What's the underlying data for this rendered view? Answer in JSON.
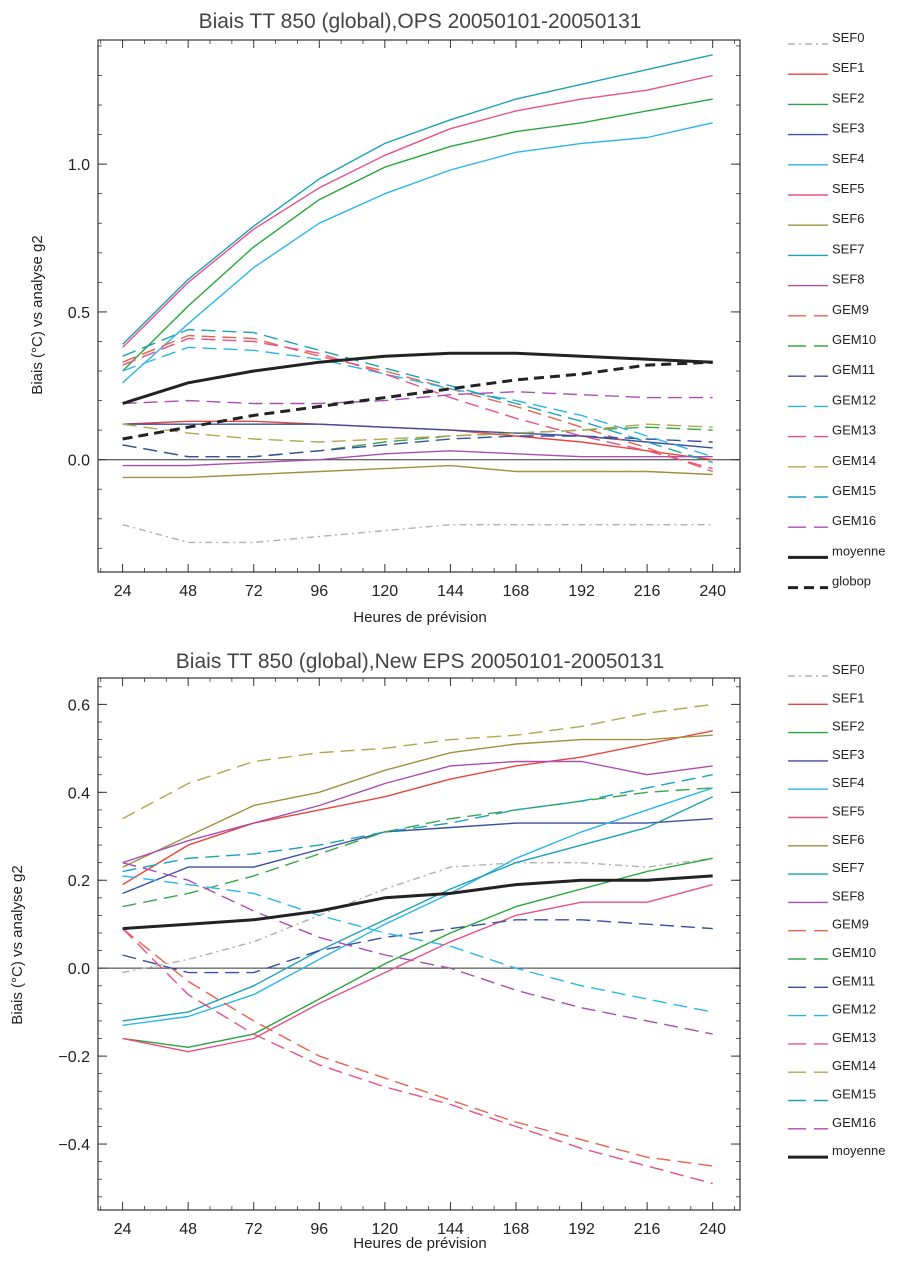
{
  "chart_data": [
    {
      "type": "line",
      "title": "Biais TT 850 (global),OPS 20050101-20050131",
      "xlabel": "Heures de prévision",
      "ylabel": "Biais (°C) vs analyse g2",
      "x": [
        24,
        48,
        72,
        96,
        120,
        144,
        168,
        192,
        216,
        240
      ],
      "xlim": [
        15,
        250
      ],
      "ylim": [
        -0.38,
        1.42
      ],
      "yticks": [
        0.0,
        0.5,
        1.0
      ],
      "yticklabels": [
        "0.0",
        "0.5",
        "1.0"
      ],
      "zero_line": true,
      "grid": false,
      "legend": "right",
      "series": [
        {
          "name": "SEF0",
          "color": "#b0b0b0",
          "dash": "dashdot",
          "values": [
            -0.22,
            -0.28,
            -0.28,
            -0.26,
            -0.24,
            -0.22,
            -0.22,
            -0.22,
            -0.22,
            -0.22
          ]
        },
        {
          "name": "SEF1",
          "color": "#e8453c",
          "dash": "solid",
          "values": [
            0.12,
            0.13,
            0.13,
            0.12,
            0.11,
            0.1,
            0.08,
            0.06,
            0.03,
            0.0
          ]
        },
        {
          "name": "SEF2",
          "color": "#2aa63a",
          "dash": "solid",
          "values": [
            0.3,
            0.52,
            0.72,
            0.88,
            0.99,
            1.06,
            1.11,
            1.14,
            1.18,
            1.22
          ]
        },
        {
          "name": "SEF3",
          "color": "#3a4fa0",
          "dash": "solid",
          "values": [
            0.12,
            0.12,
            0.12,
            0.12,
            0.11,
            0.1,
            0.09,
            0.08,
            0.06,
            0.04
          ]
        },
        {
          "name": "SEF4",
          "color": "#2bb6e8",
          "dash": "solid",
          "values": [
            0.26,
            0.46,
            0.65,
            0.8,
            0.9,
            0.98,
            1.04,
            1.07,
            1.09,
            1.14
          ]
        },
        {
          "name": "SEF5",
          "color": "#e8508a",
          "dash": "solid",
          "values": [
            0.38,
            0.6,
            0.78,
            0.92,
            1.03,
            1.12,
            1.18,
            1.22,
            1.25,
            1.3
          ]
        },
        {
          "name": "SEF6",
          "color": "#a09040",
          "dash": "solid",
          "values": [
            -0.06,
            -0.06,
            -0.05,
            -0.04,
            -0.03,
            -0.02,
            -0.04,
            -0.04,
            -0.04,
            -0.05
          ]
        },
        {
          "name": "SEF7",
          "color": "#1ba2b8",
          "dash": "solid",
          "values": [
            0.39,
            0.61,
            0.79,
            0.95,
            1.07,
            1.15,
            1.22,
            1.27,
            1.32,
            1.37
          ]
        },
        {
          "name": "SEF8",
          "color": "#a84fb0",
          "dash": "solid",
          "values": [
            -0.02,
            -0.02,
            -0.01,
            0.0,
            0.02,
            0.03,
            0.02,
            0.01,
            0.01,
            0.01
          ]
        },
        {
          "name": "GEM9",
          "color": "#e8634a",
          "dash": "dash",
          "values": [
            0.33,
            0.42,
            0.41,
            0.35,
            0.3,
            0.24,
            0.18,
            0.11,
            0.04,
            -0.04
          ]
        },
        {
          "name": "GEM10",
          "color": "#3aa64a",
          "dash": "dash",
          "values": [
            0.05,
            0.01,
            0.01,
            0.03,
            0.06,
            0.08,
            0.09,
            0.1,
            0.11,
            0.1
          ]
        },
        {
          "name": "GEM11",
          "color": "#3a4fa0",
          "dash": "dash",
          "values": [
            0.05,
            0.01,
            0.01,
            0.03,
            0.05,
            0.07,
            0.08,
            0.08,
            0.07,
            0.06
          ]
        },
        {
          "name": "GEM12",
          "color": "#2bb6e8",
          "dash": "dash",
          "values": [
            0.3,
            0.38,
            0.37,
            0.34,
            0.29,
            0.24,
            0.2,
            0.15,
            0.08,
            0.01
          ]
        },
        {
          "name": "GEM13",
          "color": "#e8508a",
          "dash": "dash",
          "values": [
            0.32,
            0.41,
            0.4,
            0.36,
            0.29,
            0.21,
            0.14,
            0.08,
            0.03,
            -0.03
          ]
        },
        {
          "name": "GEM14",
          "color": "#b0a850",
          "dash": "dash",
          "values": [
            0.12,
            0.09,
            0.07,
            0.06,
            0.07,
            0.08,
            0.09,
            0.1,
            0.12,
            0.11
          ]
        },
        {
          "name": "GEM15",
          "color": "#1ba2b8",
          "dash": "dash",
          "values": [
            0.35,
            0.44,
            0.43,
            0.37,
            0.31,
            0.25,
            0.19,
            0.13,
            0.06,
            -0.01
          ]
        },
        {
          "name": "GEM16",
          "color": "#a84fb0",
          "dash": "dash",
          "values": [
            0.19,
            0.2,
            0.19,
            0.19,
            0.2,
            0.22,
            0.23,
            0.22,
            0.21,
            0.21
          ]
        },
        {
          "name": "moyenne",
          "color": "#222222",
          "dash": "solid",
          "width": 3,
          "values": [
            0.19,
            0.26,
            0.3,
            0.33,
            0.35,
            0.36,
            0.36,
            0.35,
            0.34,
            0.33
          ]
        },
        {
          "name": "globop",
          "color": "#222222",
          "dash": "boldDash",
          "width": 3,
          "values": [
            0.07,
            0.11,
            0.15,
            0.18,
            0.21,
            0.24,
            0.27,
            0.29,
            0.32,
            0.33
          ]
        }
      ]
    },
    {
      "type": "line",
      "title": "Biais TT 850 (global),New EPS 20050101-20050131",
      "xlabel": "Heures de prévision",
      "ylabel": "Biais (°C) vs analyse g2",
      "x": [
        24,
        48,
        72,
        96,
        120,
        144,
        168,
        192,
        216,
        240
      ],
      "xlim": [
        15,
        250
      ],
      "ylim": [
        -0.55,
        0.66
      ],
      "yticks": [
        -0.4,
        -0.2,
        0.0,
        0.2,
        0.4,
        0.6
      ],
      "yticklabels": [
        "−0.4",
        "−0.2",
        "0.0",
        "0.2",
        "0.4",
        "0.6"
      ],
      "zero_line": true,
      "grid": false,
      "legend": "right",
      "series": [
        {
          "name": "SEF0",
          "color": "#b0b0b0",
          "dash": "dashdot",
          "values": [
            -0.01,
            0.02,
            0.06,
            0.12,
            0.18,
            0.23,
            0.24,
            0.24,
            0.23,
            0.25
          ]
        },
        {
          "name": "SEF1",
          "color": "#e8453c",
          "dash": "solid",
          "values": [
            0.19,
            0.28,
            0.33,
            0.36,
            0.39,
            0.43,
            0.46,
            0.48,
            0.51,
            0.54
          ]
        },
        {
          "name": "SEF2",
          "color": "#2aa63a",
          "dash": "solid",
          "values": [
            -0.16,
            -0.18,
            -0.15,
            -0.07,
            0.01,
            0.08,
            0.14,
            0.18,
            0.22,
            0.25
          ]
        },
        {
          "name": "SEF3",
          "color": "#3a4fa0",
          "dash": "solid",
          "values": [
            0.17,
            0.23,
            0.23,
            0.27,
            0.31,
            0.32,
            0.33,
            0.33,
            0.33,
            0.34
          ]
        },
        {
          "name": "SEF4",
          "color": "#2bb6e8",
          "dash": "solid",
          "values": [
            -0.13,
            -0.11,
            -0.06,
            0.02,
            0.1,
            0.17,
            0.25,
            0.31,
            0.36,
            0.41
          ]
        },
        {
          "name": "SEF5",
          "color": "#e8508a",
          "dash": "solid",
          "values": [
            -0.16,
            -0.19,
            -0.16,
            -0.08,
            -0.01,
            0.06,
            0.12,
            0.15,
            0.15,
            0.19
          ]
        },
        {
          "name": "SEF6",
          "color": "#a09040",
          "dash": "solid",
          "values": [
            0.23,
            0.3,
            0.37,
            0.4,
            0.45,
            0.49,
            0.51,
            0.52,
            0.52,
            0.53
          ]
        },
        {
          "name": "SEF7",
          "color": "#1ba2b8",
          "dash": "solid",
          "values": [
            -0.12,
            -0.1,
            -0.04,
            0.04,
            0.11,
            0.18,
            0.24,
            0.28,
            0.32,
            0.39
          ]
        },
        {
          "name": "SEF8",
          "color": "#a84fb0",
          "dash": "solid",
          "values": [
            0.24,
            0.29,
            0.33,
            0.37,
            0.42,
            0.46,
            0.47,
            0.47,
            0.44,
            0.46
          ]
        },
        {
          "name": "GEM9",
          "color": "#e8634a",
          "dash": "dash",
          "values": [
            0.09,
            -0.03,
            -0.12,
            -0.2,
            -0.25,
            -0.3,
            -0.35,
            -0.39,
            -0.43,
            -0.45
          ]
        },
        {
          "name": "GEM10",
          "color": "#3aa64a",
          "dash": "dash",
          "values": [
            0.14,
            0.17,
            0.21,
            0.26,
            0.31,
            0.34,
            0.36,
            0.38,
            0.4,
            0.41
          ]
        },
        {
          "name": "GEM11",
          "color": "#3a4fa0",
          "dash": "dash",
          "values": [
            0.03,
            -0.01,
            -0.01,
            0.04,
            0.07,
            0.09,
            0.11,
            0.11,
            0.1,
            0.09
          ]
        },
        {
          "name": "GEM12",
          "color": "#2bb6e8",
          "dash": "dash",
          "values": [
            0.21,
            0.19,
            0.17,
            0.12,
            0.08,
            0.05,
            0.0,
            -0.04,
            -0.07,
            -0.1
          ]
        },
        {
          "name": "GEM13",
          "color": "#e8508a",
          "dash": "dash",
          "values": [
            0.09,
            -0.06,
            -0.15,
            -0.22,
            -0.27,
            -0.31,
            -0.36,
            -0.41,
            -0.45,
            -0.49
          ]
        },
        {
          "name": "GEM14",
          "color": "#b0a850",
          "dash": "dash",
          "values": [
            0.34,
            0.42,
            0.47,
            0.49,
            0.5,
            0.52,
            0.53,
            0.55,
            0.58,
            0.6
          ]
        },
        {
          "name": "GEM15",
          "color": "#1ba2b8",
          "dash": "dash",
          "values": [
            0.22,
            0.25,
            0.26,
            0.28,
            0.31,
            0.33,
            0.36,
            0.38,
            0.41,
            0.44
          ]
        },
        {
          "name": "GEM16",
          "color": "#a84fb0",
          "dash": "dash",
          "values": [
            0.24,
            0.2,
            0.13,
            0.07,
            0.03,
            0.0,
            -0.05,
            -0.09,
            -0.12,
            -0.15
          ]
        },
        {
          "name": "moyenne",
          "color": "#222222",
          "dash": "solid",
          "width": 3,
          "values": [
            0.09,
            0.1,
            0.11,
            0.13,
            0.16,
            0.17,
            0.19,
            0.2,
            0.2,
            0.21
          ]
        }
      ]
    }
  ]
}
